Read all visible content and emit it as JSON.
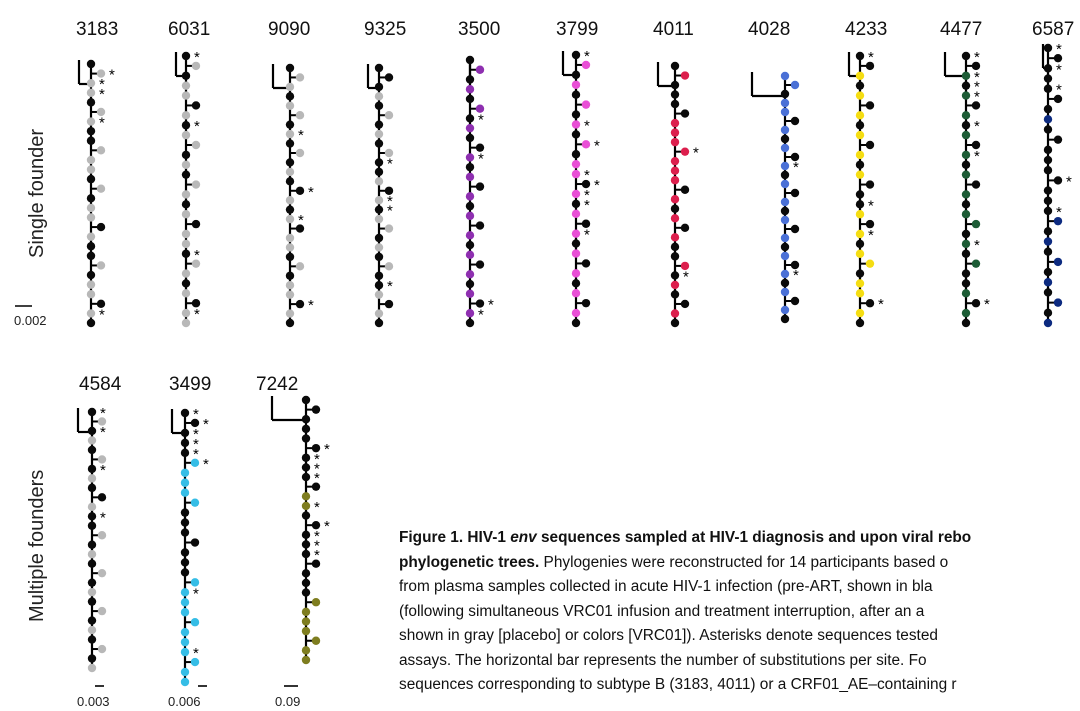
{
  "row_labels": {
    "single": "Single founder",
    "multiple": "Multiple founders"
  },
  "colors": {
    "acute": "#0a0a0a",
    "placebo": "#b8b8b8",
    "purple": "#8e2fb0",
    "magenta": "#e94fd6",
    "crimson": "#dc1f4d",
    "blue": "#4a70d6",
    "yellow": "#f5dd12",
    "green": "#1c5c35",
    "navy": "#0c2a80",
    "cyan": "#35bde6",
    "olive": "#7e7d1f"
  },
  "trees": [
    {
      "id": "3183",
      "label": "3183",
      "color": "placebo",
      "pattern": "KGGGKGGKKGGGKGKGGKGKKGKGGKGK",
      "stars": [
        1,
        2,
        3,
        6,
        26
      ]
    },
    {
      "id": "6031",
      "label": "6031",
      "color": "placebo",
      "pattern": "KGKGGKGKGGKGKGGKGKGGKGGKGKGG",
      "stars": [
        0,
        7,
        20,
        26
      ]
    },
    {
      "id": "9090",
      "label": "9090",
      "color": "placebo",
      "pattern": "KGGKGGKGKGKGKKGKGKGGKGKGGKGK",
      "stars": [
        7,
        13,
        16,
        25
      ]
    },
    {
      "id": "9325",
      "label": "9325",
      "color": "placebo",
      "pattern": "KKKGKGKGKGKKGKGKGGKGKGKKGKGK",
      "stars": [
        10,
        14,
        15,
        23
      ]
    },
    {
      "id": "3500",
      "label": "3500",
      "color": "purple",
      "pattern": "KCKCKCKCKKCKCKCKCKCKCKCKCKCK",
      "stars": [
        6,
        10,
        25,
        26
      ]
    },
    {
      "id": "3799",
      "label": "3799",
      "color": "magenta",
      "pattern": "KCKCKCKCKCKCCKCKCKCKCKCKCKCK",
      "stars": [
        0,
        7,
        9,
        12,
        13,
        14,
        15,
        18
      ]
    },
    {
      "id": "4011",
      "label": "4011",
      "color": "crimson",
      "pattern": "KCKKKKCCCCCCCKCKCKCKKCKCKKCK",
      "stars": [
        9,
        22
      ]
    },
    {
      "id": "4028",
      "label": "4028",
      "color": "blue",
      "pattern": "CCKCCKCKCKCKCKCKCKCKCKCKCKCK",
      "stars": [
        10,
        22
      ]
    },
    {
      "id": "4233",
      "label": "4233",
      "color": "yellow",
      "pattern": "KKCKCKCKCKCKCKKKCKCKCCKCCKCK",
      "stars": [
        0,
        15,
        18,
        25
      ]
    },
    {
      "id": "4477",
      "label": "4477",
      "color": "green",
      "pattern": "KKCKCKCKCKCKCKCKCCKCKCKKCKCK",
      "stars": [
        0,
        2,
        3,
        4,
        7,
        10,
        19,
        25
      ]
    },
    {
      "id": "6587",
      "label": "6587",
      "color": "navy",
      "pattern": "KKKKKKKCKKKKKKKKKCKCKCKCKCKC",
      "stars": [
        0,
        2,
        4,
        13,
        16
      ]
    },
    {
      "id": "4584",
      "label": "4584",
      "color": "placebo",
      "pattern": "KGKGKGKGKKGKKGKGKGKGKGKGKGKG",
      "stars": [
        0,
        2,
        6,
        11
      ]
    },
    {
      "id": "3499",
      "label": "3499",
      "color": "cyan",
      "pattern": "KKKKKCCCCCKKKKKKKCCCCCCCCCCC",
      "stars": [
        0,
        1,
        2,
        3,
        4,
        5,
        18,
        24
      ]
    },
    {
      "id": "7242",
      "label": "7242",
      "color": "olive",
      "pattern": "KKKKKKKKKKCCKKKKKKKKKCCCCCCC",
      "stars": [
        5,
        6,
        7,
        8,
        11,
        13,
        14,
        15,
        16
      ]
    }
  ],
  "scale_bars": {
    "s1": "0.002",
    "s2": "0.003",
    "s3": "0.006",
    "s4": "0.09"
  },
  "caption": {
    "l1_bold_prefix": "Figure 1. HIV-1 ",
    "l1_italic": "env",
    "l1_bold_rest": " sequences sampled at HIV-1 diagnosis and upon viral rebo",
    "l2_bold": "phylogenetic trees.",
    "l2_rest": " Phylogenies were reconstructed for 14 participants based o",
    "l3": "from plasma samples collected in acute HIV-1 infection (pre-ART, shown in bla",
    "l4": "(following simultaneous VRC01 infusion and treatment interruption, after an a",
    "l5": "shown in gray [placebo] or colors [VRC01]). Asterisks denote sequences tested",
    "l6": "assays. The horizontal bar represents the number of substitutions per site. Fo",
    "l7": "sequences corresponding to subtype B (3183, 4011) or a CRF01_AE–containing r"
  }
}
